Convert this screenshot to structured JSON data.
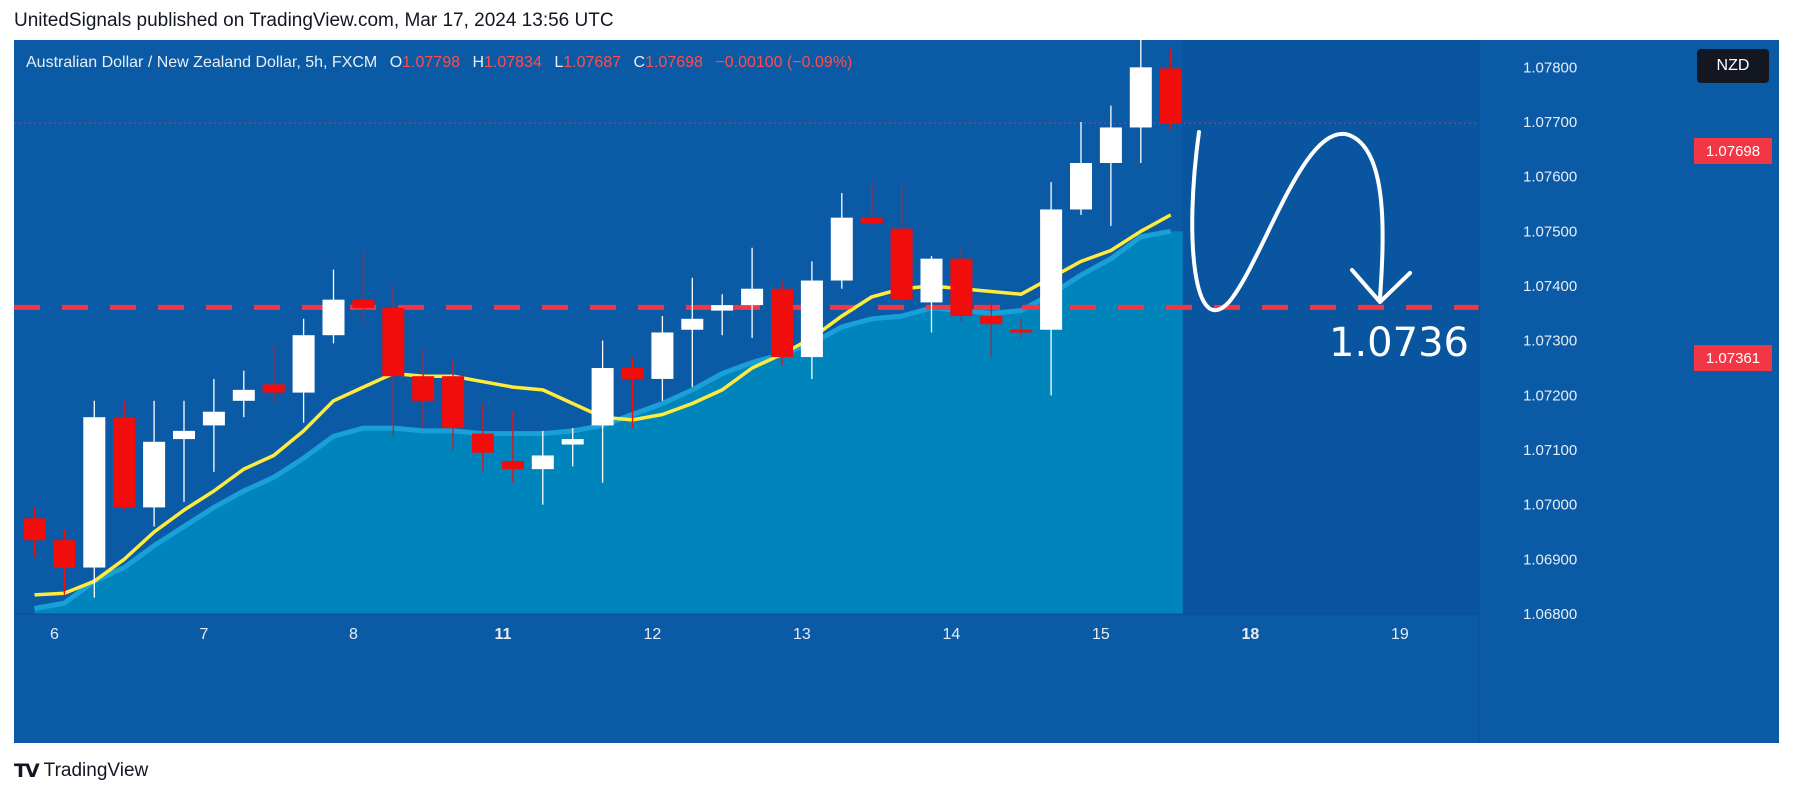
{
  "header": {
    "text": "UnitedSignals published on TradingView.com, Mar 17, 2024 13:56 UTC"
  },
  "legend": {
    "symbol": "Australian Dollar / New Zealand Dollar, 5h, FXCM",
    "o_label": "O",
    "o_value": "1.07798",
    "h_label": "H",
    "h_value": "1.07834",
    "l_label": "L",
    "l_value": "1.07687",
    "c_label": "C",
    "c_value": "1.07698",
    "change": "−0.00100 (−0.09%)"
  },
  "currency_badge": "NZD",
  "price_tags": {
    "current": "1.07698",
    "target": "1.07361"
  },
  "annotation": {
    "target_text": "1.0736"
  },
  "footer": {
    "logo_text": "TV",
    "brand": "TradingView"
  },
  "colors": {
    "background": "#0b5aa5",
    "up": "#ffffff",
    "down": "#f20d0d",
    "ema": "#ffeb3b",
    "area": "#0087bd",
    "target_line": "#f23645"
  },
  "chart_data": {
    "type": "candlestick",
    "symbol": "AUDNZD",
    "timeframe": "5h",
    "ylim": [
      1.068,
      1.0785
    ],
    "y_ticks": [
      "1.07800",
      "1.07700",
      "1.07600",
      "1.07500",
      "1.07400",
      "1.07300",
      "1.07200",
      "1.07100",
      "1.07000",
      "1.06900",
      "1.06800"
    ],
    "y_tick_values": [
      1.078,
      1.077,
      1.076,
      1.075,
      1.074,
      1.073,
      1.072,
      1.071,
      1.07,
      1.069,
      1.068
    ],
    "x_ticks": [
      {
        "label": "6",
        "index": 0.7,
        "bold": false
      },
      {
        "label": "7",
        "index": 5.7,
        "bold": false
      },
      {
        "label": "8",
        "index": 10.7,
        "bold": false
      },
      {
        "label": "11",
        "index": 15.7,
        "bold": true
      },
      {
        "label": "12",
        "index": 20.7,
        "bold": false
      },
      {
        "label": "13",
        "index": 25.7,
        "bold": false
      },
      {
        "label": "14",
        "index": 30.7,
        "bold": false
      },
      {
        "label": "15",
        "index": 35.7,
        "bold": false
      },
      {
        "label": "18",
        "index": 40.7,
        "bold": true
      },
      {
        "label": "19",
        "index": 45.7,
        "bold": false
      }
    ],
    "candles": [
      {
        "o": 1.06975,
        "h": 1.06995,
        "l": 1.06905,
        "c": 1.06935
      },
      {
        "o": 1.06935,
        "h": 1.06955,
        "l": 1.06835,
        "c": 1.06885
      },
      {
        "o": 1.06885,
        "h": 1.0719,
        "l": 1.0683,
        "c": 1.0716
      },
      {
        "o": 1.0716,
        "h": 1.0719,
        "l": 1.0699,
        "c": 1.06995
      },
      {
        "o": 1.06995,
        "h": 1.0719,
        "l": 1.0696,
        "c": 1.07115
      },
      {
        "o": 1.0712,
        "h": 1.0719,
        "l": 1.07005,
        "c": 1.07135
      },
      {
        "o": 1.07145,
        "h": 1.0723,
        "l": 1.0706,
        "c": 1.0717
      },
      {
        "o": 1.0719,
        "h": 1.07245,
        "l": 1.0716,
        "c": 1.0721
      },
      {
        "o": 1.0722,
        "h": 1.0729,
        "l": 1.07185,
        "c": 1.07205
      },
      {
        "o": 1.07205,
        "h": 1.0734,
        "l": 1.0715,
        "c": 1.0731
      },
      {
        "o": 1.0731,
        "h": 1.0743,
        "l": 1.07295,
        "c": 1.07375
      },
      {
        "o": 1.07375,
        "h": 1.07465,
        "l": 1.0733,
        "c": 1.0736
      },
      {
        "o": 1.0736,
        "h": 1.074,
        "l": 1.07125,
        "c": 1.07235
      },
      {
        "o": 1.07235,
        "h": 1.07285,
        "l": 1.0714,
        "c": 1.0719
      },
      {
        "o": 1.07235,
        "h": 1.07265,
        "l": 1.071,
        "c": 1.0714
      },
      {
        "o": 1.0713,
        "h": 1.07185,
        "l": 1.0706,
        "c": 1.07095
      },
      {
        "o": 1.0708,
        "h": 1.0717,
        "l": 1.0704,
        "c": 1.07065
      },
      {
        "o": 1.07065,
        "h": 1.07135,
        "l": 1.07,
        "c": 1.0709
      },
      {
        "o": 1.0711,
        "h": 1.0714,
        "l": 1.0707,
        "c": 1.0712
      },
      {
        "o": 1.07145,
        "h": 1.073,
        "l": 1.0704,
        "c": 1.0725
      },
      {
        "o": 1.0725,
        "h": 1.0727,
        "l": 1.0714,
        "c": 1.0723
      },
      {
        "o": 1.0723,
        "h": 1.07345,
        "l": 1.0719,
        "c": 1.07315
      },
      {
        "o": 1.0732,
        "h": 1.07415,
        "l": 1.07215,
        "c": 1.0734
      },
      {
        "o": 1.07355,
        "h": 1.07385,
        "l": 1.0731,
        "c": 1.07365
      },
      {
        "o": 1.07365,
        "h": 1.0747,
        "l": 1.07305,
        "c": 1.07395
      },
      {
        "o": 1.07395,
        "h": 1.0741,
        "l": 1.07255,
        "c": 1.0727
      },
      {
        "o": 1.0727,
        "h": 1.07445,
        "l": 1.0723,
        "c": 1.0741
      },
      {
        "o": 1.0741,
        "h": 1.0757,
        "l": 1.07395,
        "c": 1.07525
      },
      {
        "o": 1.07525,
        "h": 1.0759,
        "l": 1.0751,
        "c": 1.07515
      },
      {
        "o": 1.07505,
        "h": 1.07585,
        "l": 1.07365,
        "c": 1.07375
      },
      {
        "o": 1.0737,
        "h": 1.07455,
        "l": 1.07315,
        "c": 1.0745
      },
      {
        "o": 1.0745,
        "h": 1.0747,
        "l": 1.07335,
        "c": 1.07345
      },
      {
        "o": 1.07345,
        "h": 1.0737,
        "l": 1.0727,
        "c": 1.0733
      },
      {
        "o": 1.0732,
        "h": 1.0734,
        "l": 1.07305,
        "c": 1.07315
      },
      {
        "o": 1.0732,
        "h": 1.0759,
        "l": 1.072,
        "c": 1.0754
      },
      {
        "o": 1.0754,
        "h": 1.077,
        "l": 1.0753,
        "c": 1.07625
      },
      {
        "o": 1.07625,
        "h": 1.0773,
        "l": 1.0751,
        "c": 1.0769
      },
      {
        "o": 1.0769,
        "h": 1.0787,
        "l": 1.07625,
        "c": 1.078
      },
      {
        "o": 1.07798,
        "h": 1.07834,
        "l": 1.07687,
        "c": 1.07698
      }
    ],
    "ema": [
      1.06835,
      1.06838,
      1.0686,
      1.069,
      1.0695,
      1.0699,
      1.07025,
      1.07065,
      1.0709,
      1.07135,
      1.0719,
      1.07215,
      1.0724,
      1.07235,
      1.07235,
      1.07225,
      1.07215,
      1.0721,
      1.07185,
      1.0716,
      1.07155,
      1.07165,
      1.07185,
      1.0721,
      1.0725,
      1.07275,
      1.07305,
      1.07345,
      1.0738,
      1.07395,
      1.074,
      1.07395,
      1.0739,
      1.07385,
      1.07415,
      1.07445,
      1.07465,
      1.075,
      1.0753
    ],
    "area": [
      1.0681,
      1.0682,
      1.0686,
      1.06885,
      1.06925,
      1.0696,
      1.06995,
      1.07025,
      1.0705,
      1.07085,
      1.07125,
      1.0714,
      1.0714,
      1.07135,
      1.07135,
      1.0713,
      1.0713,
      1.0713,
      1.07135,
      1.07145,
      1.07165,
      1.07185,
      1.0721,
      1.0724,
      1.0726,
      1.07275,
      1.07295,
      1.07325,
      1.0734,
      1.07345,
      1.0736,
      1.07355,
      1.0735,
      1.07355,
      1.07385,
      1.0742,
      1.0745,
      1.0749,
      1.075
    ],
    "current_price": 1.07698,
    "target_price": 1.07361
  }
}
